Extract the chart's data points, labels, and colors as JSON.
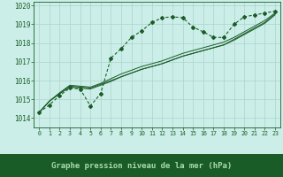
{
  "title": "Graphe pression niveau de la mer (hPa)",
  "bg_color": "#cceee8",
  "grid_color": "#aad4cc",
  "line_color": "#1a5c28",
  "xlabel_bg": "#1a5c28",
  "xlabel_fg": "#cceecc",
  "xlim": [
    -0.5,
    23.5
  ],
  "ylim": [
    1013.5,
    1020.2
  ],
  "yticks": [
    1014,
    1015,
    1016,
    1017,
    1018,
    1019,
    1020
  ],
  "xticks": [
    0,
    1,
    2,
    3,
    4,
    5,
    6,
    7,
    8,
    9,
    10,
    11,
    12,
    13,
    14,
    15,
    16,
    17,
    18,
    19,
    20,
    21,
    22,
    23
  ],
  "series_main": [
    1014.3,
    1014.7,
    1015.2,
    1015.6,
    1015.55,
    1014.65,
    1015.3,
    1017.2,
    1017.7,
    1018.3,
    1018.65,
    1019.1,
    1019.35,
    1019.4,
    1019.35,
    1018.85,
    1018.6,
    1018.3,
    1018.3,
    1019.0,
    1019.4,
    1019.5,
    1019.6,
    1019.7
  ],
  "series_lines": [
    [
      1014.3,
      1014.9,
      1015.3,
      1015.65,
      1015.6,
      1015.55,
      1015.75,
      1015.95,
      1016.2,
      1016.4,
      1016.6,
      1016.75,
      1016.9,
      1017.1,
      1017.3,
      1017.45,
      1017.6,
      1017.75,
      1017.9,
      1018.15,
      1018.45,
      1018.75,
      1019.05,
      1019.5
    ],
    [
      1014.3,
      1014.9,
      1015.3,
      1015.7,
      1015.65,
      1015.6,
      1015.8,
      1016.0,
      1016.2,
      1016.4,
      1016.6,
      1016.75,
      1016.9,
      1017.1,
      1017.3,
      1017.45,
      1017.6,
      1017.75,
      1017.9,
      1018.2,
      1018.5,
      1018.8,
      1019.1,
      1019.55
    ],
    [
      1014.3,
      1014.9,
      1015.35,
      1015.75,
      1015.7,
      1015.65,
      1015.85,
      1016.1,
      1016.35,
      1016.55,
      1016.75,
      1016.9,
      1017.05,
      1017.25,
      1017.45,
      1017.6,
      1017.75,
      1017.9,
      1018.05,
      1018.3,
      1018.6,
      1018.9,
      1019.2,
      1019.6
    ]
  ]
}
